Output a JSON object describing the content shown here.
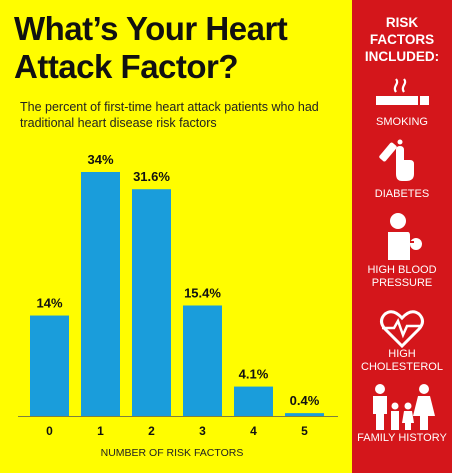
{
  "title": "What’s Your Heart Attack Factor?",
  "subtitle": "The percent of first-time heart attack patients who had traditional heart disease risk factors",
  "chart_data": {
    "type": "bar",
    "categories": [
      "0",
      "1",
      "2",
      "3",
      "4",
      "5"
    ],
    "values": [
      14,
      34,
      31.6,
      15.4,
      4.1,
      0.4
    ],
    "data_labels": [
      "14%",
      "34%",
      "31.6%",
      "15.4%",
      "4.1%",
      "0.4%"
    ],
    "xlabel": "NUMBER OF RISK FACTORS",
    "ylabel": "",
    "ylim": [
      0,
      34
    ],
    "bar_color": "#1a9ddb",
    "grid": false
  },
  "sidebar": {
    "title": "RISK FACTORS INCLUDED:",
    "background": "#d4161b",
    "factors": [
      {
        "label": "SMOKING",
        "icon": "cigarette-icon"
      },
      {
        "label": "DIABETES",
        "icon": "glucose-test-icon"
      },
      {
        "label": "HIGH BLOOD PRESSURE",
        "icon": "blood-pressure-icon"
      },
      {
        "label": "HIGH CHOLESTEROL",
        "icon": "heart-pulse-icon"
      },
      {
        "label": "FAMILY HISTORY",
        "icon": "family-icon"
      }
    ]
  }
}
